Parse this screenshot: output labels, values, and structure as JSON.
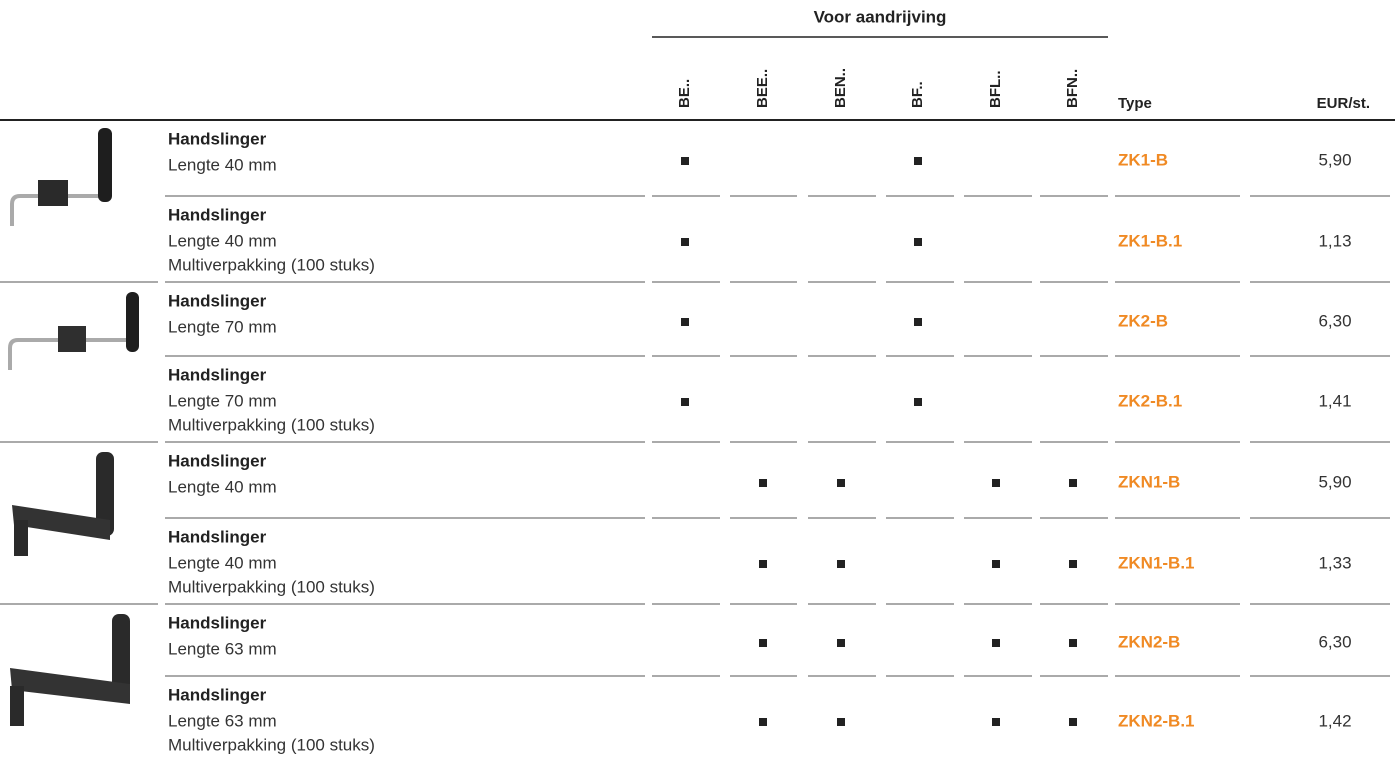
{
  "header": {
    "group": "Voor aandrijving",
    "columns": [
      "BE..",
      "BEE..",
      "BEN..",
      "BF..",
      "BFL..",
      "BFN.."
    ],
    "type": "Type",
    "price": "EUR/st."
  },
  "rows": [
    {
      "name": "Handslinger",
      "lines": [
        "Lengte 40 mm"
      ],
      "marks": [
        true,
        false,
        false,
        true,
        false,
        false
      ],
      "type": "ZK1-B",
      "price": "5,90"
    },
    {
      "name": "Handslinger",
      "lines": [
        "Lengte 40 mm",
        "Multiverpakking (100 stuks)"
      ],
      "marks": [
        true,
        false,
        false,
        true,
        false,
        false
      ],
      "type": "ZK1-B.1",
      "price": "1,13"
    },
    {
      "name": "Handslinger",
      "lines": [
        "Lengte 70 mm"
      ],
      "marks": [
        true,
        false,
        false,
        true,
        false,
        false
      ],
      "type": "ZK2-B",
      "price": "6,30"
    },
    {
      "name": "Handslinger",
      "lines": [
        "Lengte 70 mm",
        "Multiverpakking (100 stuks)"
      ],
      "marks": [
        true,
        false,
        false,
        true,
        false,
        false
      ],
      "type": "ZK2-B.1",
      "price": "1,41"
    },
    {
      "name": "Handslinger",
      "lines": [
        "Lengte 40 mm"
      ],
      "marks": [
        false,
        true,
        true,
        false,
        true,
        true
      ],
      "type": "ZKN1-B",
      "price": "5,90"
    },
    {
      "name": "Handslinger",
      "lines": [
        "Lengte 40 mm",
        "Multiverpakking (100 stuks)"
      ],
      "marks": [
        false,
        true,
        true,
        false,
        true,
        true
      ],
      "type": "ZKN1-B.1",
      "price": "1,33"
    },
    {
      "name": "Handslinger",
      "lines": [
        "Lengte 63 mm"
      ],
      "marks": [
        false,
        true,
        true,
        false,
        true,
        true
      ],
      "type": "ZKN2-B",
      "price": "6,30"
    },
    {
      "name": "Handslinger",
      "lines": [
        "Lengte 63 mm",
        "Multiverpakking (100 stuks)"
      ],
      "marks": [
        false,
        true,
        true,
        false,
        true,
        true
      ],
      "type": "ZKN2-B.1",
      "price": "1,42"
    }
  ]
}
